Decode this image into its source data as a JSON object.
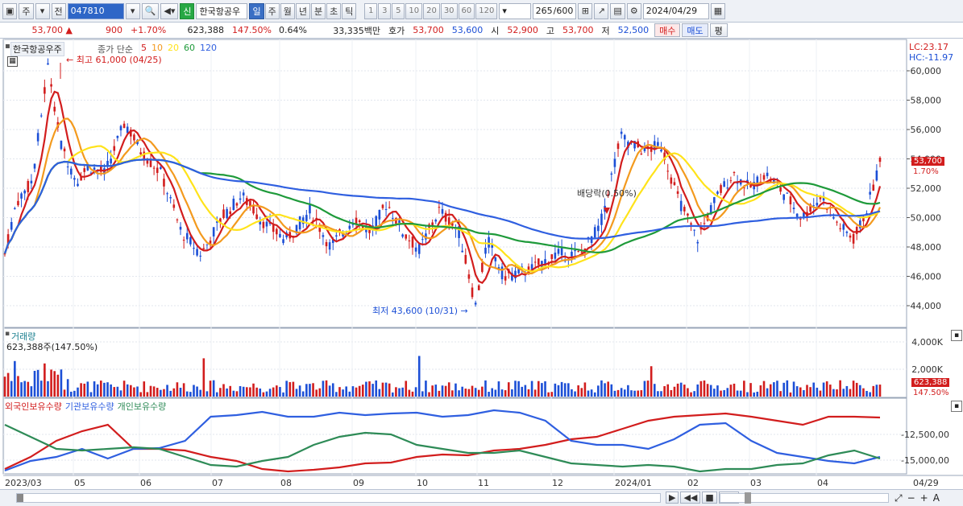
{
  "toolbar": {
    "type_label": "주",
    "prev_label": "전",
    "stock_code": "047810",
    "credit_badge": "신",
    "stock_name": "한국항공우",
    "periods": [
      "일",
      "주",
      "월",
      "년",
      "분",
      "초",
      "틱"
    ],
    "active_period": "일",
    "nums": [
      "1",
      "3",
      "5",
      "10",
      "20",
      "30",
      "60",
      "120"
    ],
    "count": "265",
    "count_total": "/600",
    "date": "2024/04/29"
  },
  "quote": {
    "price": "53,700",
    "change": "900",
    "change_pct": "+1.70%",
    "volume": "623,388",
    "volume_ratio": "147.50%",
    "turnover": "0.64%",
    "amount": "33,335백만",
    "hoga_label": "호가",
    "ask": "53,700",
    "bid": "53,600",
    "open_label": "시",
    "open": "52,900",
    "high_label": "고",
    "high": "53,700",
    "low_label": "저",
    "low": "52,500",
    "buy_label": "매수",
    "sell_label": "매도",
    "eval_label": "평"
  },
  "price_pane": {
    "stock_label": "한국항공우주",
    "legend_title": "종가 단순",
    "ma_labels": [
      "5",
      "10",
      "20",
      "60",
      "120"
    ],
    "ma_colors": [
      "#d21d1d",
      "#f39a1e",
      "#ffe31a",
      "#1e9a3a",
      "#2f5fe0"
    ],
    "high_marker": "최고 61,000 (04/25)",
    "low_marker": "최저 43,600 (10/31)",
    "dividend_marker": "배당락(0.50%)",
    "lc": "LC:23.17",
    "hc": "HC:-11.97",
    "cur_price": "53,700",
    "cur_pct": "1.70%",
    "y_ticks": [
      "60,000",
      "58,000",
      "56,000",
      "54,000",
      "52,000",
      "50,000",
      "48,000",
      "46,000",
      "44,000"
    ]
  },
  "volume_pane": {
    "title": "거래량",
    "value": "623,388주(147.50%)",
    "y_ticks": [
      "4,000K",
      "2,000K"
    ],
    "cur": "623,388",
    "cur_pct": "147.50%"
  },
  "holders_pane": {
    "legend": [
      "외국인보유수량",
      "기관보유수량",
      "개인보유수량"
    ],
    "legend_colors": [
      "#d21d1d",
      "#2f5fe0",
      "#2e8b57"
    ],
    "y_ticks": [
      "-12,500,00",
      "-15,000,00"
    ]
  },
  "x_axis": {
    "labels": [
      "2023/03",
      "05",
      "06",
      "07",
      "08",
      "09",
      "10",
      "11",
      "12",
      "2024/01",
      "02",
      "03",
      "04"
    ],
    "last_label": "04/29"
  }
}
